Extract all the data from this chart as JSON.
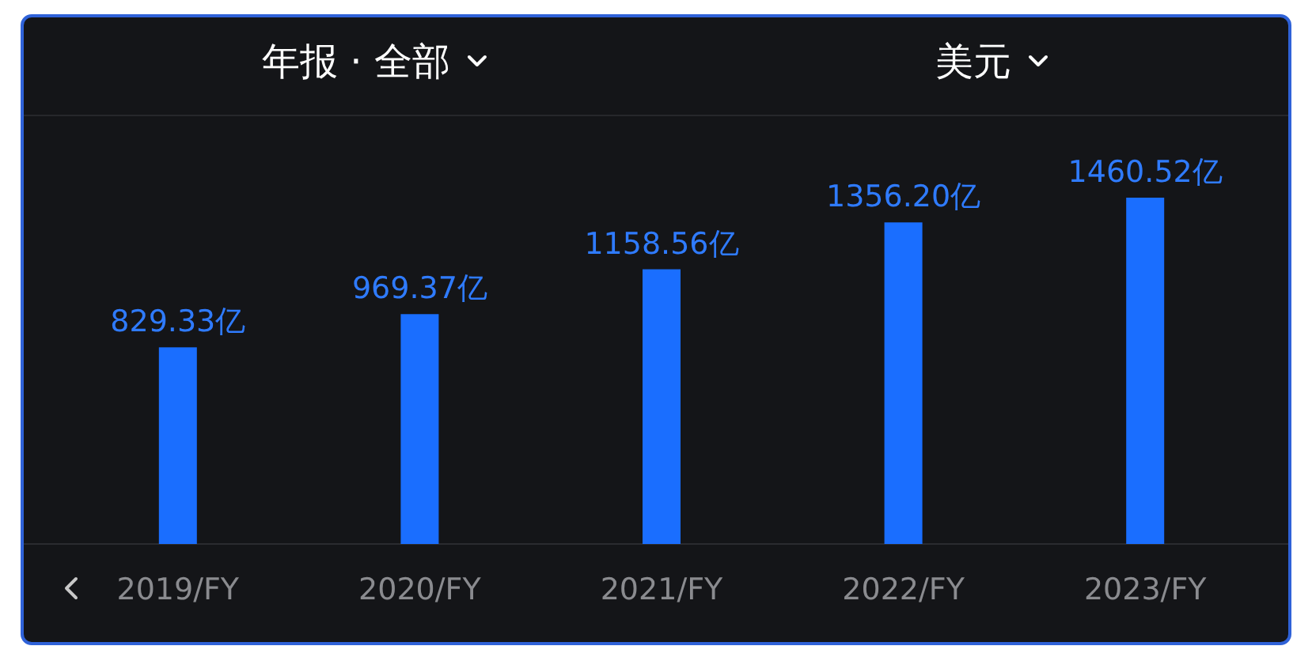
{
  "chart_data": {
    "type": "bar",
    "annotations": [
      "年报 · 全部",
      "美元"
    ],
    "categories": [
      "2019/FY",
      "2020/FY",
      "2021/FY",
      "2022/FY",
      "2023/FY"
    ],
    "values": [
      829.33,
      969.37,
      1158.56,
      1356.2,
      1460.52
    ],
    "value_labels": [
      "829.33亿",
      "969.37亿",
      "1158.56亿",
      "1356.20亿",
      "1460.52亿"
    ],
    "color": "#1a6eff",
    "tick_labels": "x"
  }
}
